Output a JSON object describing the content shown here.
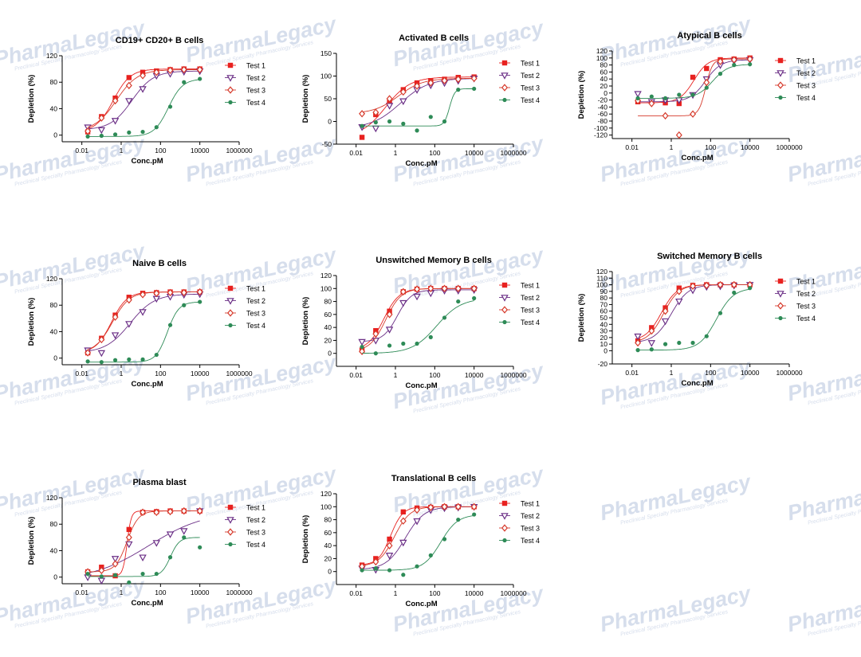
{
  "watermark": {
    "name": "PharmaLegacy",
    "tagline": "Preclinical Specialty Pharmacology Services"
  },
  "colors": {
    "test1": "#e8211f",
    "test2": "#6b2f86",
    "test3": "#d63a2b",
    "test4": "#2e8b57",
    "axis": "#000000"
  },
  "chart_data": [
    {
      "type": "scatter",
      "title": "CD19+ CD20+ B cells",
      "xlabel": "Conc.pM",
      "ylabel": "Depletion (%)",
      "xscale": "log",
      "xlim": [
        0.001,
        1000000
      ],
      "ylim": [
        -10,
        120
      ],
      "xticks": [
        "0.01",
        "1",
        "100",
        "10000",
        "1000000"
      ],
      "yticks": [
        "0",
        "40",
        "80",
        "120"
      ],
      "series": [
        {
          "name": "Test 1",
          "x": [
            0.02,
            0.1,
            0.5,
            2.5,
            12.5,
            62.5,
            312,
            1560,
            10000
          ],
          "y": [
            5,
            28,
            56,
            87,
            95,
            97,
            99,
            100,
            100
          ]
        },
        {
          "name": "Test 2",
          "x": [
            0.02,
            0.1,
            0.5,
            2.5,
            12.5,
            62.5,
            312,
            1560,
            10000
          ],
          "y": [
            12,
            8,
            22,
            52,
            70,
            90,
            93,
            96,
            97
          ]
        },
        {
          "name": "Test 3",
          "x": [
            0.02,
            0.1,
            0.5,
            2.5,
            12.5,
            62.5,
            312,
            1560,
            10000
          ],
          "y": [
            6,
            26,
            52,
            75,
            90,
            95,
            98,
            99,
            99
          ]
        },
        {
          "name": "Test 4",
          "x": [
            0.02,
            0.1,
            0.5,
            2.5,
            12.5,
            62.5,
            312,
            1560,
            10000
          ],
          "y": [
            -2,
            -1,
            1,
            4,
            5,
            12,
            43,
            80,
            85
          ]
        }
      ]
    },
    {
      "type": "scatter",
      "title": "Activated B cells",
      "xlabel": "Conc.pM",
      "ylabel": "Depletion (%)",
      "xscale": "log",
      "xlim": [
        0.001,
        1000000
      ],
      "ylim": [
        -50,
        150
      ],
      "xticks": [
        "0.01",
        "1",
        "100",
        "10000",
        "1000000"
      ],
      "yticks": [
        "-50",
        "0",
        "50",
        "100",
        "150"
      ],
      "series": [
        {
          "name": "Test 1",
          "x": [
            0.02,
            0.1,
            0.5,
            2.5,
            12.5,
            62.5,
            312,
            1560,
            10000
          ],
          "y": [
            -35,
            15,
            42,
            70,
            85,
            90,
            93,
            97,
            98
          ]
        },
        {
          "name": "Test 2",
          "x": [
            0.02,
            0.1,
            0.5,
            2.5,
            12.5,
            62.5,
            312,
            1560,
            10000
          ],
          "y": [
            -12,
            -15,
            35,
            45,
            70,
            80,
            85,
            90,
            95
          ]
        },
        {
          "name": "Test 3",
          "x": [
            0.02,
            0.1,
            0.5,
            2.5,
            12.5,
            62.5,
            312,
            1560,
            10000
          ],
          "y": [
            17,
            20,
            50,
            65,
            78,
            85,
            90,
            93,
            95
          ]
        },
        {
          "name": "Test 4",
          "x": [
            0.02,
            0.1,
            0.5,
            2.5,
            12.5,
            62.5,
            312,
            1560,
            10000
          ],
          "y": [
            -10,
            -2,
            0,
            -5,
            -20,
            10,
            0,
            70,
            72
          ]
        }
      ]
    },
    {
      "type": "scatter",
      "title": "Atypical B cells",
      "xlabel": "Conc.pM",
      "ylabel": "Depletion (%)",
      "xscale": "log",
      "xlim": [
        0.001,
        1000000
      ],
      "ylim": [
        -130,
        120
      ],
      "xticks": [
        "0.01",
        "1",
        "100",
        "10000",
        "1000000"
      ],
      "yticks": [
        "-120",
        "-100",
        "-80",
        "-60",
        "-40",
        "-20",
        "0",
        "20",
        "40",
        "60",
        "80",
        "100",
        "120"
      ],
      "series": [
        {
          "name": "Test 1",
          "x": [
            0.02,
            0.1,
            0.5,
            2.5,
            12.5,
            62.5,
            312,
            1560,
            10000
          ],
          "y": [
            -25,
            -25,
            -28,
            -30,
            45,
            70,
            95,
            97,
            100
          ]
        },
        {
          "name": "Test 2",
          "x": [
            0.02,
            0.1,
            0.5,
            2.5,
            12.5,
            62.5,
            312,
            1560,
            10000
          ],
          "y": [
            -2,
            -25,
            -20,
            -20,
            -5,
            40,
            80,
            92,
            95
          ]
        },
        {
          "name": "Test 3",
          "x": [
            0.02,
            0.1,
            0.5,
            2.5,
            12.5,
            62.5,
            312,
            1560,
            10000
          ],
          "y": [
            -22,
            -30,
            -65,
            -120,
            -60,
            30,
            90,
            95,
            97
          ]
        },
        {
          "name": "Test 4",
          "x": [
            0.02,
            0.1,
            0.5,
            2.5,
            12.5,
            62.5,
            312,
            1560,
            10000
          ],
          "y": [
            -15,
            -10,
            -15,
            -5,
            -5,
            15,
            55,
            80,
            82
          ]
        }
      ]
    },
    {
      "type": "scatter",
      "title": "Naive B cells",
      "xlabel": "Conc.pM",
      "ylabel": "Depletion (%)",
      "xscale": "log",
      "xlim": [
        0.001,
        1000000
      ],
      "ylim": [
        -10,
        120
      ],
      "xticks": [
        "0.01",
        "1",
        "100",
        "10000",
        "1000000"
      ],
      "yticks": [
        "0",
        "40",
        "80",
        "120"
      ],
      "series": [
        {
          "name": "Test 1",
          "x": [
            0.02,
            0.1,
            0.5,
            2.5,
            12.5,
            62.5,
            312,
            1560,
            10000
          ],
          "y": [
            8,
            30,
            65,
            92,
            98,
            99,
            100,
            100,
            100
          ]
        },
        {
          "name": "Test 2",
          "x": [
            0.02,
            0.1,
            0.5,
            2.5,
            12.5,
            62.5,
            312,
            1560,
            10000
          ],
          "y": [
            12,
            8,
            35,
            52,
            70,
            90,
            93,
            96,
            97
          ]
        },
        {
          "name": "Test 3",
          "x": [
            0.02,
            0.1,
            0.5,
            2.5,
            12.5,
            62.5,
            312,
            1560,
            10000
          ],
          "y": [
            8,
            28,
            62,
            88,
            96,
            98,
            99,
            99,
            100
          ]
        },
        {
          "name": "Test 4",
          "x": [
            0.02,
            0.1,
            0.5,
            2.5,
            12.5,
            62.5,
            312,
            1560,
            10000
          ],
          "y": [
            -5,
            -6,
            -3,
            -2,
            -2,
            5,
            50,
            80,
            85
          ]
        }
      ]
    },
    {
      "type": "scatter",
      "title": "Unswitched Memory B cells",
      "xlabel": "Conc.pM",
      "ylabel": "Depletion (%)",
      "xscale": "log",
      "xlim": [
        0.001,
        1000000
      ],
      "ylim": [
        -20,
        120
      ],
      "xticks": [
        "0.01",
        "1",
        "100",
        "10000",
        "1000000"
      ],
      "yticks": [
        "0",
        "20",
        "40",
        "60",
        "80",
        "100",
        "120"
      ],
      "series": [
        {
          "name": "Test 1",
          "x": [
            0.02,
            0.1,
            0.5,
            2.5,
            12.5,
            62.5,
            312,
            1560,
            10000
          ],
          "y": [
            5,
            35,
            65,
            95,
            99,
            100,
            100,
            100,
            100
          ]
        },
        {
          "name": "Test 2",
          "x": [
            0.02,
            0.1,
            0.5,
            2.5,
            12.5,
            62.5,
            312,
            1560,
            10000
          ],
          "y": [
            18,
            20,
            37,
            78,
            88,
            93,
            97,
            97,
            98
          ]
        },
        {
          "name": "Test 3",
          "x": [
            0.02,
            0.1,
            0.5,
            2.5,
            12.5,
            62.5,
            312,
            1560,
            10000
          ],
          "y": [
            3,
            30,
            60,
            95,
            99,
            100,
            100,
            100,
            100
          ]
        },
        {
          "name": "Test 4",
          "x": [
            0.02,
            0.1,
            0.5,
            2.5,
            12.5,
            62.5,
            312,
            1560,
            10000
          ],
          "y": [
            10,
            0,
            12,
            15,
            15,
            25,
            55,
            80,
            85
          ]
        }
      ]
    },
    {
      "type": "scatter",
      "title": "Switched Memory B cells",
      "xlabel": "Conc.pM",
      "ylabel": "Depletion (%)",
      "xscale": "log",
      "xlim": [
        0.001,
        1000000
      ],
      "ylim": [
        -20,
        120
      ],
      "xticks": [
        "0.01",
        "1",
        "100",
        "10000",
        "1000000"
      ],
      "yticks": [
        "-20",
        "0",
        "10",
        "20",
        "30",
        "40",
        "50",
        "60",
        "70",
        "80",
        "90",
        "100",
        "110",
        "120"
      ],
      "series": [
        {
          "name": "Test 1",
          "x": [
            0.02,
            0.1,
            0.5,
            2.5,
            12.5,
            62.5,
            312,
            1560,
            10000
          ],
          "y": [
            15,
            35,
            65,
            95,
            99,
            100,
            100,
            100,
            100
          ]
        },
        {
          "name": "Test 2",
          "x": [
            0.02,
            0.1,
            0.5,
            2.5,
            12.5,
            62.5,
            312,
            1560,
            10000
          ],
          "y": [
            22,
            12,
            45,
            75,
            92,
            97,
            98,
            99,
            100
          ]
        },
        {
          "name": "Test 3",
          "x": [
            0.02,
            0.1,
            0.5,
            2.5,
            12.5,
            62.5,
            312,
            1560,
            10000
          ],
          "y": [
            12,
            30,
            60,
            90,
            98,
            99,
            100,
            100,
            100
          ]
        },
        {
          "name": "Test 4",
          "x": [
            0.02,
            0.1,
            0.5,
            2.5,
            12.5,
            62.5,
            312,
            1560,
            10000
          ],
          "y": [
            1,
            2,
            10,
            12,
            12,
            22,
            57,
            88,
            95
          ]
        }
      ]
    },
    {
      "type": "scatter",
      "title": "Plasma blast",
      "xlabel": "Conc.pM",
      "ylabel": "Depletion (%)",
      "xscale": "log",
      "xlim": [
        0.001,
        1000000
      ],
      "ylim": [
        -10,
        120
      ],
      "xticks": [
        "0.01",
        "1",
        "100",
        "10000",
        "1000000"
      ],
      "yticks": [
        "0",
        "40",
        "80",
        "120"
      ],
      "series": [
        {
          "name": "Test 1",
          "x": [
            0.02,
            0.1,
            0.5,
            2.5,
            12.5,
            62.5,
            312,
            1560,
            10000
          ],
          "y": [
            8,
            15,
            2,
            72,
            98,
            99,
            100,
            100,
            100
          ]
        },
        {
          "name": "Test 2",
          "x": [
            0.02,
            0.1,
            0.5,
            2.5,
            12.5,
            62.5,
            312,
            1560,
            10000
          ],
          "y": [
            0,
            -5,
            28,
            50,
            30,
            52,
            65,
            70,
            100
          ]
        },
        {
          "name": "Test 3",
          "x": [
            0.02,
            0.1,
            0.5,
            2.5,
            12.5,
            62.5,
            312,
            1560,
            10000
          ],
          "y": [
            8,
            10,
            20,
            60,
            98,
            98,
            99,
            100,
            100
          ]
        },
        {
          "name": "Test 4",
          "x": [
            0.02,
            0.1,
            0.5,
            2.5,
            12.5,
            62.5,
            312,
            1560,
            10000
          ],
          "y": [
            5,
            1,
            3,
            -8,
            5,
            5,
            30,
            60,
            45
          ]
        }
      ]
    },
    {
      "type": "scatter",
      "title": "Translational B cells",
      "xlabel": "Conc.pM",
      "ylabel": "Depletion (%)",
      "xscale": "log",
      "xlim": [
        0.001,
        1000000
      ],
      "ylim": [
        -20,
        120
      ],
      "xticks": [
        "0.01",
        "1",
        "100",
        "10000",
        "1000000"
      ],
      "yticks": [
        "0",
        "20",
        "40",
        "60",
        "80",
        "100",
        "120"
      ],
      "series": [
        {
          "name": "Test 1",
          "x": [
            0.02,
            0.1,
            0.5,
            2.5,
            12.5,
            62.5,
            312,
            1560,
            10000
          ],
          "y": [
            10,
            20,
            50,
            92,
            98,
            99,
            100,
            100,
            100
          ]
        },
        {
          "name": "Test 2",
          "x": [
            0.02,
            0.1,
            0.5,
            2.5,
            12.5,
            62.5,
            312,
            1560,
            10000
          ],
          "y": [
            5,
            3,
            25,
            45,
            78,
            95,
            98,
            99,
            100
          ]
        },
        {
          "name": "Test 3",
          "x": [
            0.02,
            0.1,
            0.5,
            2.5,
            12.5,
            62.5,
            312,
            1560,
            10000
          ],
          "y": [
            8,
            15,
            40,
            78,
            95,
            99,
            100,
            100,
            100
          ]
        },
        {
          "name": "Test 4",
          "x": [
            0.02,
            0.1,
            0.5,
            2.5,
            12.5,
            62.5,
            312,
            1560,
            10000
          ],
          "y": [
            2,
            5,
            2,
            -5,
            8,
            25,
            50,
            80,
            88
          ]
        }
      ]
    }
  ]
}
